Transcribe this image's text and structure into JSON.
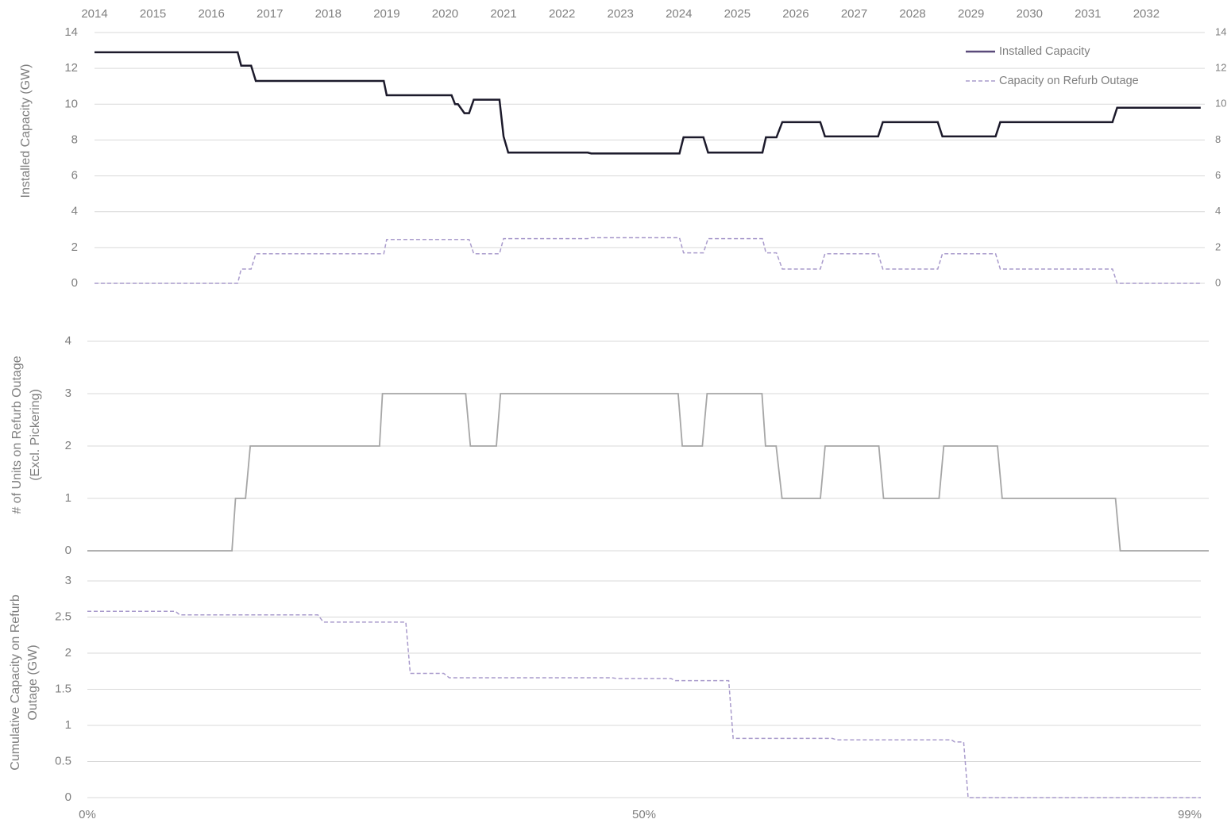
{
  "chart_data": [
    {
      "type": "line",
      "ylabel": "Installed Capacity (GW)",
      "x": [
        2014,
        2016.45,
        2016.51,
        2016.68,
        2016.76,
        2018.95,
        2019.0,
        2020.11,
        2020.17,
        2020.22,
        2020.33,
        2020.41,
        2020.49,
        2020.93,
        2021.0,
        2021.08,
        2022.44,
        2022.5,
        2024.01,
        2024.08,
        2024.42,
        2024.5,
        2025.43,
        2025.49,
        2025.67,
        2025.77,
        2026.42,
        2026.5,
        2027.41,
        2027.49,
        2028.43,
        2028.51,
        2029.42,
        2029.5,
        2031.42,
        2031.5,
        2032.93
      ],
      "series": [
        {
          "name": "Installed Capacity",
          "color": "#1c1a2b",
          "legend_color": "#5a4a7a",
          "dashed": false,
          "values": [
            12.9,
            12.9,
            12.15,
            12.15,
            11.3,
            11.3,
            10.5,
            10.5,
            10.0,
            10.0,
            9.5,
            9.5,
            10.25,
            10.25,
            8.2,
            7.3,
            7.3,
            7.25,
            7.25,
            8.15,
            8.15,
            7.3,
            7.3,
            8.15,
            8.15,
            9.0,
            9.0,
            8.2,
            8.2,
            9.0,
            9.0,
            8.2,
            8.2,
            9.0,
            9.0,
            9.8,
            9.8
          ]
        },
        {
          "name": "Capacity on Refurb Outage",
          "color": "#a99bcc",
          "legend_color": "#a99bcc",
          "dashed": true,
          "values": [
            0,
            0,
            0.8,
            0.8,
            1.65,
            1.65,
            2.45,
            2.45,
            2.45,
            2.45,
            2.45,
            2.45,
            1.65,
            1.65,
            2.5,
            2.5,
            2.5,
            2.55,
            2.55,
            1.7,
            1.7,
            2.5,
            2.5,
            1.7,
            1.7,
            0.8,
            0.8,
            1.65,
            1.65,
            0.8,
            0.8,
            1.65,
            1.65,
            0.8,
            0.8,
            0,
            0
          ]
        }
      ],
      "xlim": [
        2014,
        2033
      ],
      "xticks": [
        2014,
        2015,
        2016,
        2017,
        2018,
        2019,
        2020,
        2021,
        2022,
        2023,
        2024,
        2025,
        2026,
        2027,
        2028,
        2029,
        2030,
        2031,
        2032
      ],
      "ylim": [
        0,
        14
      ],
      "yticks": [
        0,
        2,
        4,
        6,
        8,
        10,
        12,
        14
      ],
      "y2lim": [
        0,
        14
      ],
      "y2ticks": [
        0,
        2,
        4,
        6,
        8,
        10,
        12,
        14
      ],
      "grid": true,
      "legend": "top-right"
    },
    {
      "type": "line",
      "ylabel": [
        "# of Units on Refurb Outage",
        "(Excl. Pickering)"
      ],
      "x": [
        2014,
        2016.45,
        2016.51,
        2016.68,
        2016.76,
        2018.95,
        2019.0,
        2020.11,
        2020.17,
        2020.22,
        2020.33,
        2020.41,
        2020.49,
        2020.93,
        2021.0,
        2021.08,
        2022.44,
        2022.5,
        2024.01,
        2024.08,
        2024.42,
        2024.5,
        2025.43,
        2025.49,
        2025.67,
        2025.77,
        2026.42,
        2026.5,
        2027.41,
        2027.49,
        2028.43,
        2028.51,
        2029.42,
        2029.5,
        2031.42,
        2031.5,
        2033
      ],
      "series": [
        {
          "color": "#a6a6a6",
          "dashed": false,
          "values": [
            0,
            0,
            1,
            1,
            2,
            2,
            3,
            3,
            3,
            3,
            3,
            3,
            2,
            2,
            3,
            3,
            3,
            3,
            3,
            2,
            2,
            3,
            3,
            2,
            2,
            1,
            1,
            2,
            2,
            1,
            1,
            2,
            2,
            1,
            1,
            0,
            0
          ]
        }
      ],
      "xlim": [
        2014,
        2033
      ],
      "ylim": [
        0,
        4
      ],
      "yticks": [
        0,
        1,
        2,
        3,
        4
      ],
      "grid": true
    },
    {
      "type": "line",
      "ylabel": [
        "Cumulative Capacity on Refurb",
        "Outage (GW)"
      ],
      "x": [
        0,
        7.9,
        8.3,
        20.7,
        21.2,
        28.6,
        29.0,
        32.0,
        32.5,
        47.1,
        47.5,
        52.4,
        52.8,
        57.6,
        58.0,
        66.9,
        67.3,
        77.6,
        77.9,
        78.7,
        79.1,
        100
      ],
      "series": [
        {
          "color": "#a99bcc",
          "dashed": true,
          "values": [
            2.58,
            2.58,
            2.53,
            2.53,
            2.43,
            2.43,
            1.72,
            1.72,
            1.66,
            1.66,
            1.65,
            1.65,
            1.62,
            1.62,
            0.82,
            0.82,
            0.8,
            0.8,
            0.77,
            0.77,
            0,
            0
          ]
        }
      ],
      "xlim": [
        0,
        100
      ],
      "xticks": [
        {
          "value": 0,
          "label": "0%"
        },
        {
          "value": 50,
          "label": "50%"
        },
        {
          "value": 99,
          "label": "99%"
        }
      ],
      "ylim": [
        0,
        3
      ],
      "yticks": [
        0,
        0.5,
        1,
        1.5,
        2,
        2.5,
        3
      ],
      "grid": true
    }
  ]
}
